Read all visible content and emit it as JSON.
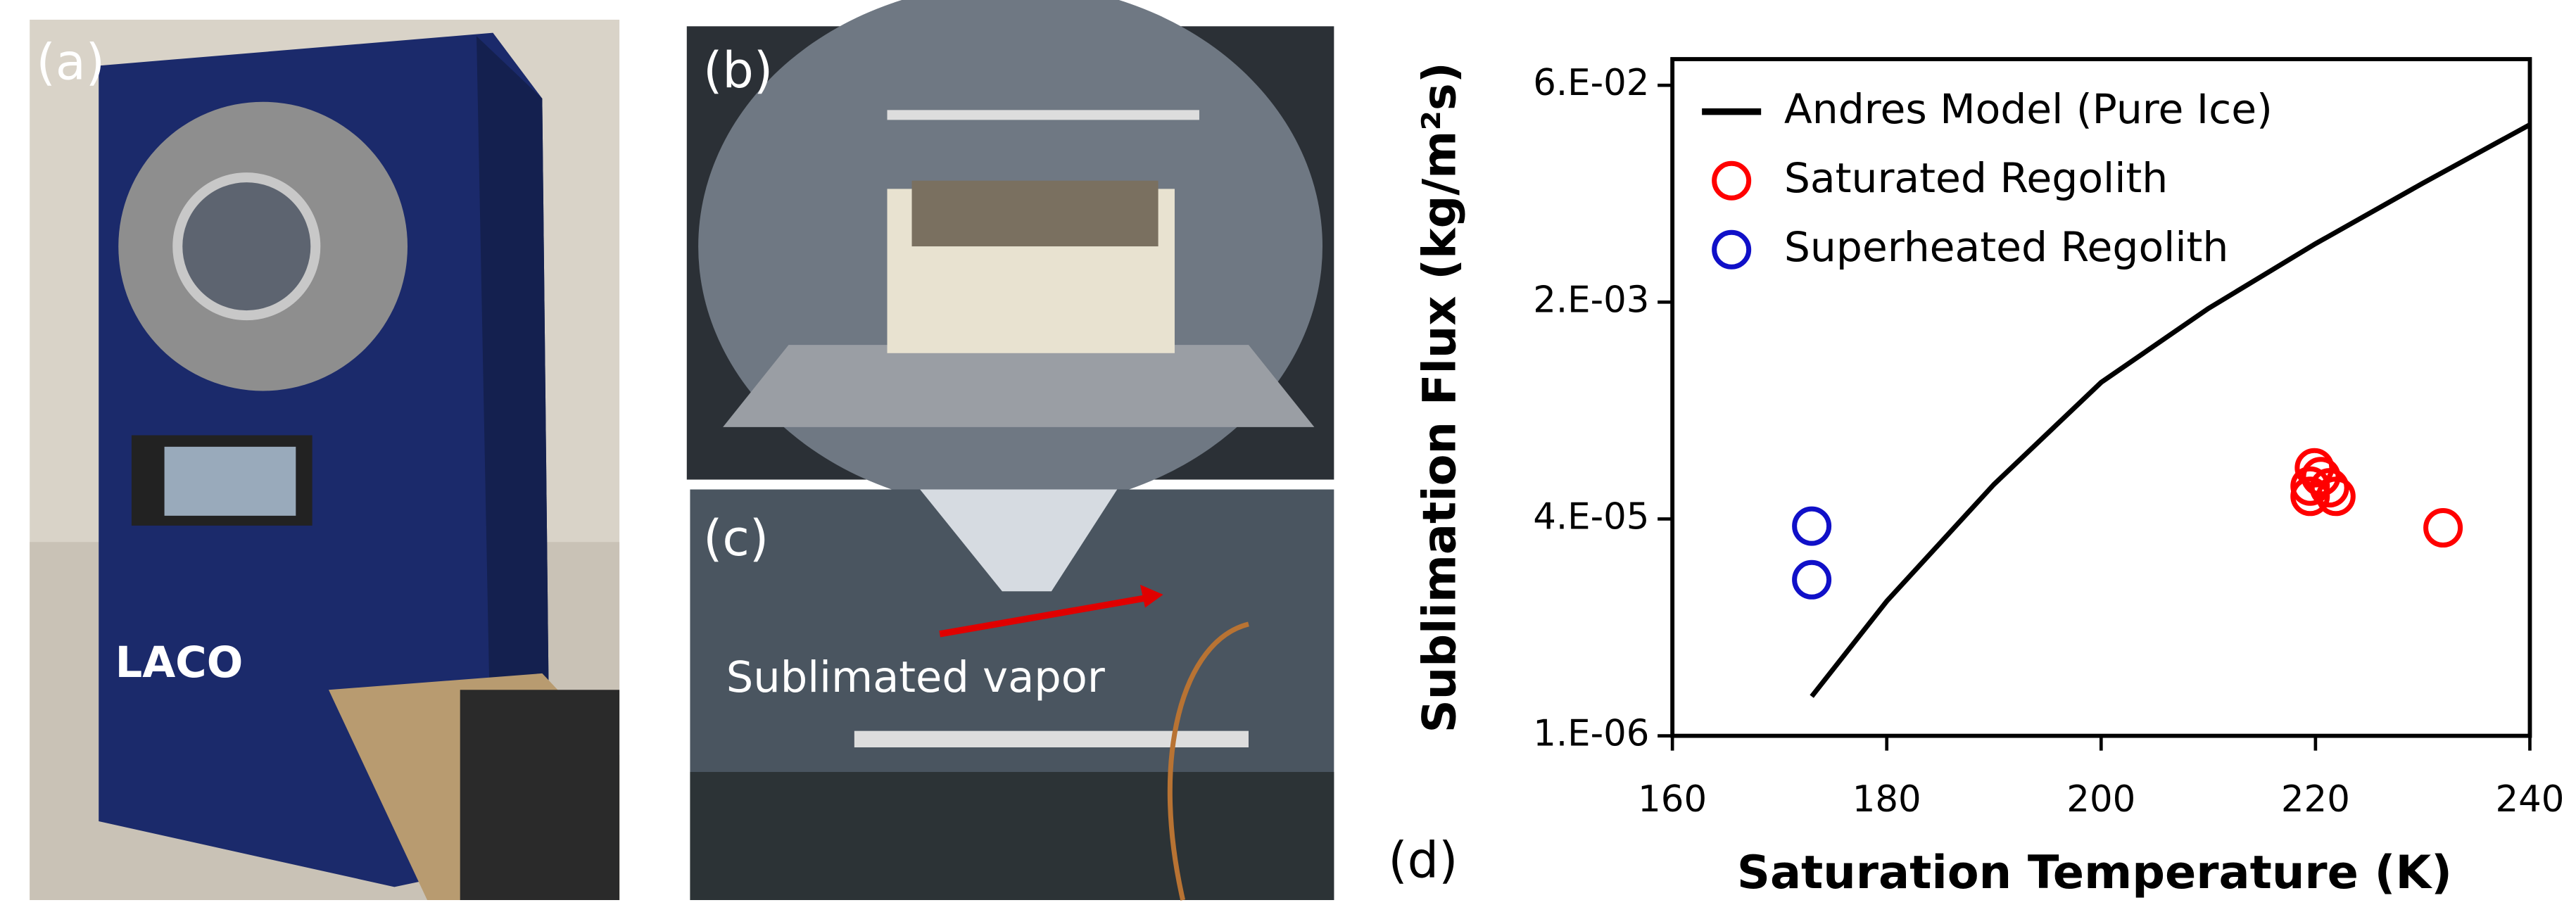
{
  "panels": {
    "a": "(a)",
    "b": "(b)",
    "c": "(c)",
    "c_annotation": "Sublimated vapor",
    "d": "(d)"
  },
  "chart_data": {
    "type": "scatter",
    "x_label": "Saturation Temperature (K)",
    "y_label": "Sublimation Flux (kg/m²s)",
    "xlim": [
      160,
      240
    ],
    "xticks": [
      160,
      180,
      200,
      220,
      240
    ],
    "ylim": [
      1e-06,
      0.096
    ],
    "log_y": true,
    "yticks": [
      {
        "value": 1e-06,
        "label": "1.E-06"
      },
      {
        "value": 3.95e-05,
        "label": "4.E-05"
      },
      {
        "value": 0.00156,
        "label": "2.E-03"
      },
      {
        "value": 0.0616,
        "label": "6.E-02"
      }
    ],
    "grid": false,
    "legend": "upper left",
    "series": [
      {
        "name": "Andres Model (Pure Ice)",
        "color": "#000000",
        "mode": "line",
        "x": [
          173,
          180,
          190,
          200,
          210,
          220,
          230,
          240
        ],
        "values": [
          1.95e-06,
          9.8e-06,
          7.1e-05,
          0.0004,
          0.0014,
          0.0042,
          0.0117,
          0.0316
        ]
      },
      {
        "name": "Saturated Regolith",
        "color": "#ff0000",
        "mode": "markers",
        "x": [
          219.9,
          220.5,
          219.5,
          221.3,
          221.9,
          219.5,
          231.9
        ],
        "values": [
          9.4e-05,
          8.1e-05,
          6.9e-05,
          6.7e-05,
          5.8e-05,
          5.8e-05,
          3.4e-05
        ]
      },
      {
        "name": "Superheated Regolith",
        "color": "#1010c8",
        "mode": "markers",
        "x": [
          173,
          173
        ],
        "values": [
          3.5e-05,
          1.41e-05
        ]
      }
    ]
  }
}
